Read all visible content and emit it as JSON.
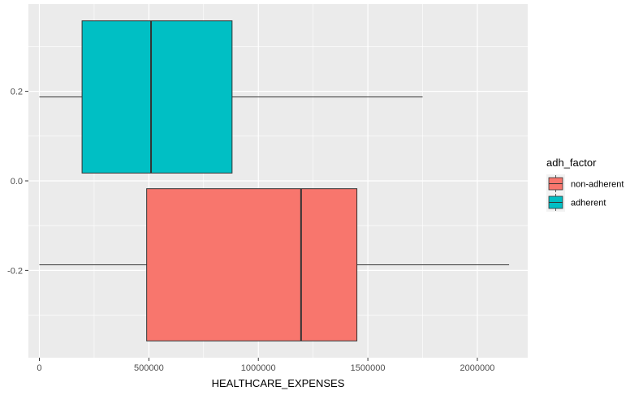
{
  "chart_data": {
    "type": "boxplot",
    "orientation": "horizontal",
    "title": "",
    "xlabel": "HEALTHCARE_EXPENSES",
    "ylabel": "",
    "xlim": [
      -50000,
      2230000
    ],
    "ylim": [
      -0.395,
      0.395
    ],
    "x_ticks": [
      0,
      500000,
      1000000,
      1500000,
      2000000
    ],
    "x_tick_labels": [
      "0",
      "500000",
      "1000000",
      "1500000",
      "2000000"
    ],
    "y_ticks": [
      -0.2,
      0.0,
      0.2
    ],
    "y_tick_labels": [
      "-0.2",
      "0.0",
      "0.2"
    ],
    "grid": true,
    "legend": {
      "title": "adh_factor",
      "position": "right",
      "entries": [
        "non-adherent",
        "adherent"
      ]
    },
    "series": [
      {
        "name": "non-adherent",
        "color": "#F8766D",
        "y_center": -0.1875,
        "y_range": [
          -0.3575,
          -0.0175
        ],
        "whisker_low": 0,
        "q1": 490000,
        "median": 1195000,
        "q3": 1450000,
        "whisker_high": 2145000
      },
      {
        "name": "adherent",
        "color": "#00BFC4",
        "y_center": 0.1875,
        "y_range": [
          0.0175,
          0.3575
        ],
        "whisker_low": 0,
        "q1": 195000,
        "median": 510000,
        "q3": 880000,
        "whisker_high": 1750000
      }
    ]
  },
  "colors": {
    "panel_background": "#EBEBEB",
    "grid_line": "#FFFFFF",
    "outline": "#333333"
  }
}
